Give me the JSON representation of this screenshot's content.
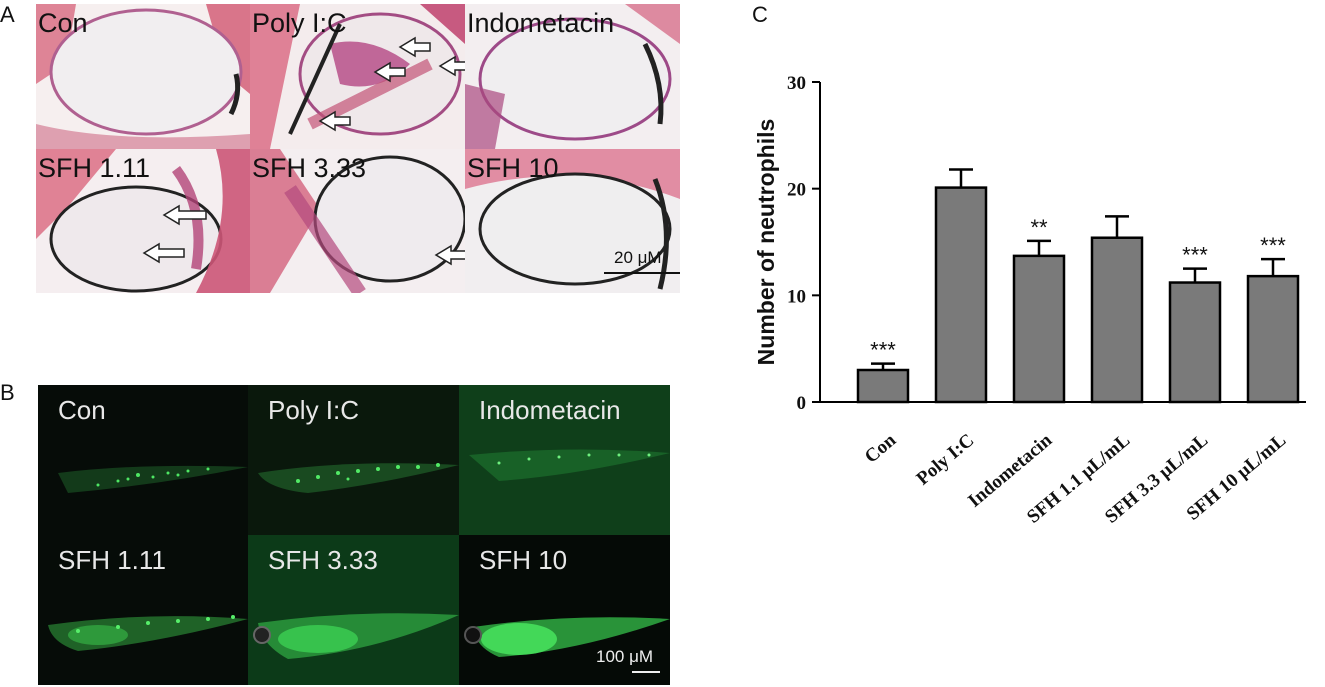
{
  "panels": {
    "a": {
      "letter": "A",
      "cells": [
        {
          "label": "Con"
        },
        {
          "label": "Poly I:C"
        },
        {
          "label": "Indometacin"
        },
        {
          "label": "SFH 1.11"
        },
        {
          "label": "SFH 3.33"
        },
        {
          "label": "SFH 10"
        }
      ],
      "scale_bar": "20 μM"
    },
    "b": {
      "letter": "B",
      "cells": [
        {
          "label": "Con"
        },
        {
          "label": "Poly I:C"
        },
        {
          "label": "Indometacin"
        },
        {
          "label": "SFH 1.11"
        },
        {
          "label": "SFH 3.33"
        },
        {
          "label": "SFH 10"
        }
      ],
      "scale_bar": "100 μM"
    },
    "c": {
      "letter": "C"
    }
  },
  "colors": {
    "bar_fill": "#7a7a7a",
    "bar_stroke": "#000000",
    "axis": "#000000",
    "tissue_pink": "#d8697f",
    "tissue_purple": "#a8467e",
    "fluorescence": "#3cd655"
  },
  "chart_data": {
    "type": "bar",
    "title": "",
    "xlabel": "",
    "ylabel": "Number of neutrophils",
    "ylim": [
      0,
      30
    ],
    "yticks": [
      "0",
      "10",
      "20",
      "30"
    ],
    "categories": [
      "Con",
      "Poly I:C",
      "Indometacin",
      "SFH 1.1 μL/mL",
      "SFH 3.3 μL/mL",
      "SFH 10 μL/mL"
    ],
    "values": [
      3.0,
      20.1,
      13.7,
      15.4,
      11.2,
      11.8
    ],
    "errors": [
      0.6,
      1.7,
      1.4,
      2.0,
      1.3,
      1.6
    ],
    "significance": [
      "***",
      "",
      "**",
      "",
      "***",
      "***"
    ]
  }
}
